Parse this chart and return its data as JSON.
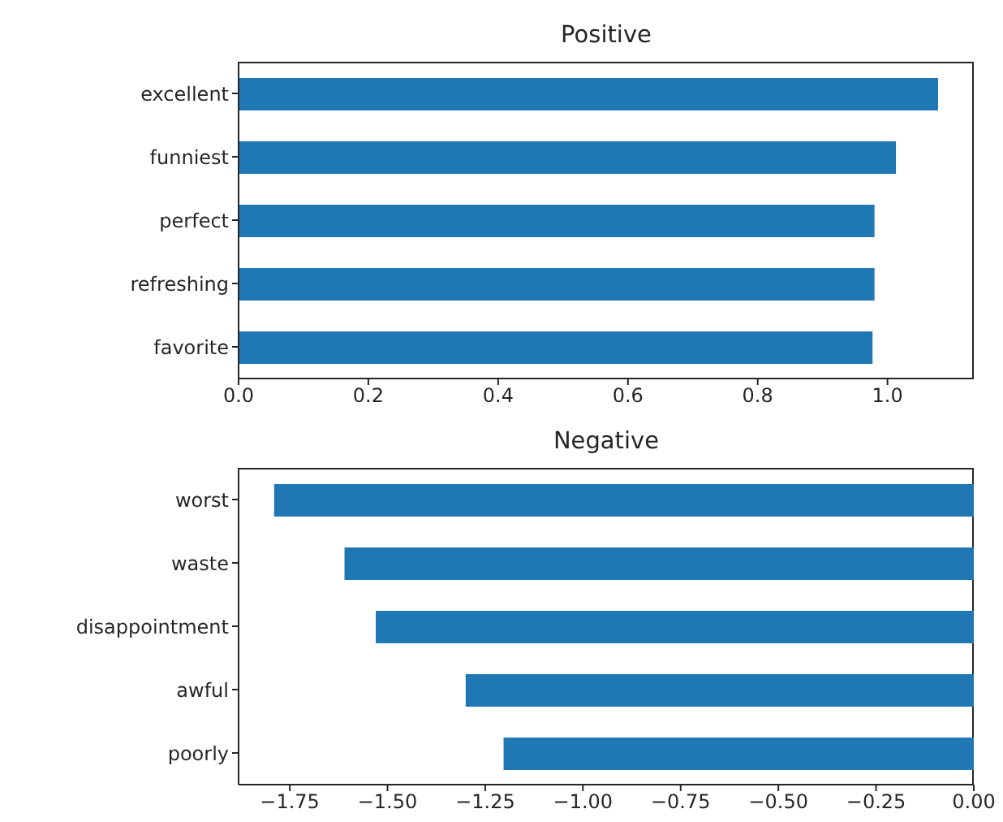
{
  "chart_data": [
    {
      "type": "bar",
      "orientation": "horizontal",
      "title": "Positive",
      "categories": [
        "excellent",
        "funniest",
        "perfect",
        "refreshing",
        "favorite"
      ],
      "values": [
        1.078,
        1.013,
        0.98,
        0.98,
        0.977
      ],
      "color": "#1f77b4",
      "xlim": [
        0,
        1.133
      ],
      "xticks": [
        {
          "value": 0,
          "label": "0.0"
        },
        {
          "value": 0.2,
          "label": "0.2"
        },
        {
          "value": 0.4,
          "label": "0.4"
        },
        {
          "value": 0.6,
          "label": "0.6"
        },
        {
          "value": 0.8,
          "label": "0.8"
        },
        {
          "value": 1,
          "label": "1.0"
        }
      ]
    },
    {
      "type": "bar",
      "orientation": "horizontal",
      "title": "Negative",
      "categories": [
        "worst",
        "waste",
        "disappointment",
        "awful",
        "poorly"
      ],
      "values": [
        -1.79,
        -1.61,
        -1.53,
        -1.3,
        -1.203
      ],
      "color": "#1f77b4",
      "xlim": [
        -1.881,
        0
      ],
      "xticks": [
        {
          "value": -1.75,
          "label": "−1.75"
        },
        {
          "value": -1.5,
          "label": "−1.50"
        },
        {
          "value": -1.25,
          "label": "−1.25"
        },
        {
          "value": -1,
          "label": "−1.00"
        },
        {
          "value": -0.75,
          "label": "−0.75"
        },
        {
          "value": -0.5,
          "label": "−0.50"
        },
        {
          "value": -0.25,
          "label": "−0.25"
        },
        {
          "value": 0,
          "label": "0.00"
        }
      ]
    }
  ]
}
